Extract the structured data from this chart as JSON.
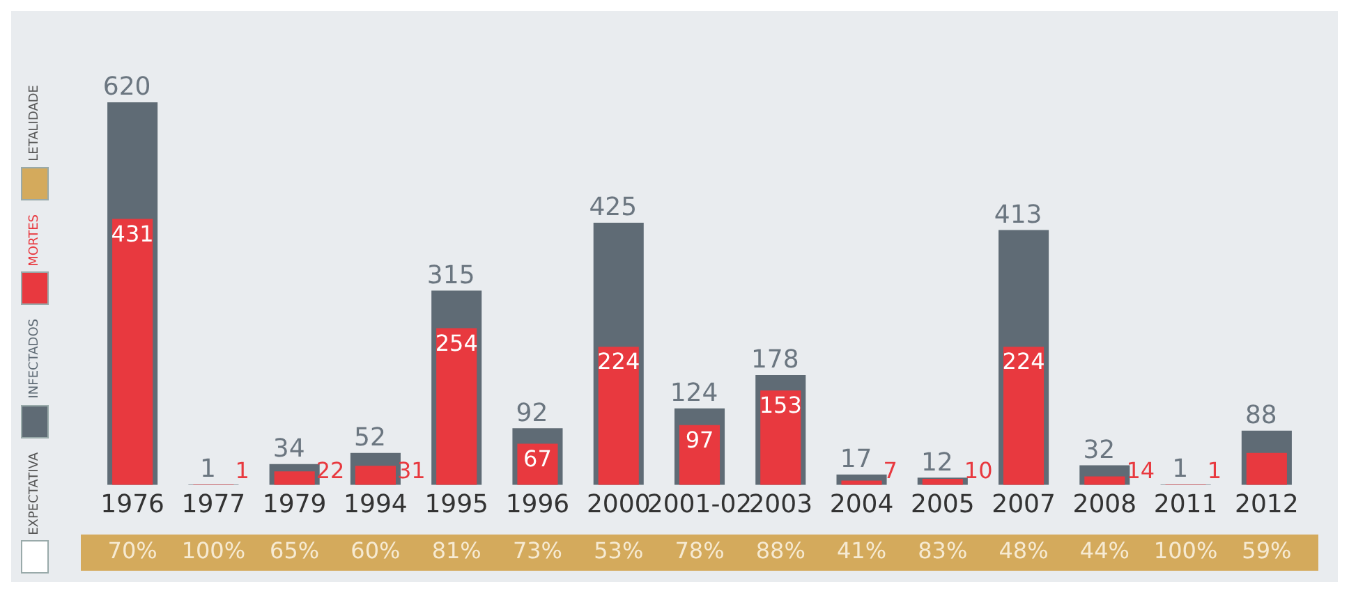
{
  "chart_data": {
    "type": "bar",
    "categories": [
      "1976",
      "1977",
      "1979",
      "1994",
      "1995",
      "1996",
      "2000",
      "2001-02",
      "2003",
      "2004",
      "2005",
      "2007",
      "2008",
      "2011",
      "2012"
    ],
    "series": [
      {
        "name": "INFECTADOS",
        "color": "#5f6b75",
        "values": [
          620,
          1,
          34,
          52,
          315,
          92,
          425,
          124,
          178,
          17,
          12,
          413,
          32,
          1,
          88
        ],
        "value_labels": [
          "620",
          "1",
          "34",
          "52",
          "315",
          "92",
          "425",
          "124",
          "178",
          "17",
          "12",
          "413",
          "32",
          "1",
          "88"
        ]
      },
      {
        "name": "MORTES",
        "color": "#e8393f",
        "values": [
          431,
          1,
          22,
          31,
          254,
          67,
          224,
          97,
          153,
          7,
          10,
          224,
          14,
          1,
          52
        ],
        "value_labels": [
          "431",
          "1",
          "22",
          "31",
          "254",
          "67",
          "224",
          "97",
          "153",
          "7",
          "10",
          "224",
          "14",
          "1",
          null
        ]
      }
    ],
    "annotations": [
      "70%",
      "100%",
      "65%",
      "60%",
      "81%",
      "73%",
      "53%",
      "78%",
      "88%",
      "41%",
      "83%",
      "48%",
      "44%",
      "100%",
      "59%",
      "EXPECTATIVA",
      "LETALIDADE"
    ],
    "legend": "left",
    "grid": false
  }
}
